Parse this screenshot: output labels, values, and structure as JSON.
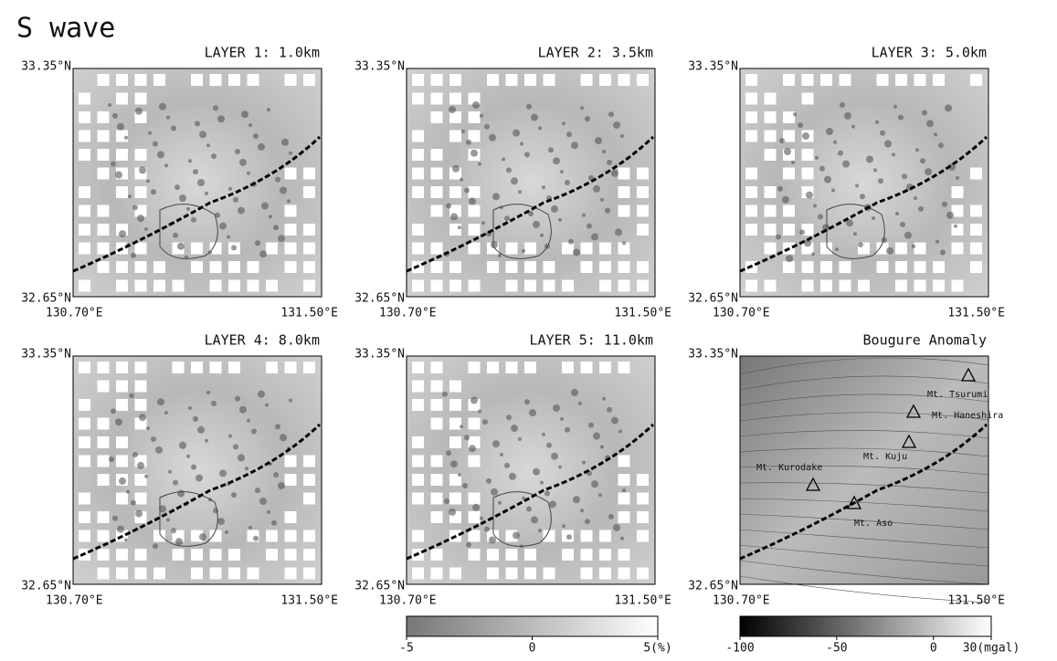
{
  "header": {
    "title": "S wave"
  },
  "axes": {
    "lat_top": "33.35°N",
    "lat_bottom": "32.65°N",
    "lon_left": "130.70°E",
    "lon_right": "131.50°E"
  },
  "panels": [
    {
      "title": "LAYER 1: 1.0km"
    },
    {
      "title": "LAYER 2: 3.5km"
    },
    {
      "title": "LAYER 3: 5.0km"
    },
    {
      "title": "LAYER 4: 8.0km"
    },
    {
      "title": "LAYER 5: 11.0km"
    },
    {
      "title": "Bougure Anomaly",
      "labels": [
        "Mt. Tsurumi",
        "Mt. Haneshira",
        "Mt. Kuju",
        "Mt. Kurodake",
        "Mt. Aso"
      ]
    }
  ],
  "colorbars": [
    {
      "labels": [
        "-5",
        "0",
        "5(%)"
      ]
    },
    {
      "labels": [
        "-100",
        "-50",
        "0",
        "30(mgal)"
      ]
    }
  ]
}
